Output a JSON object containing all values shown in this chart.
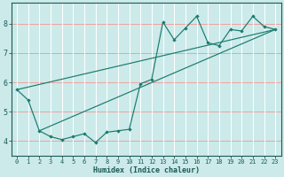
{
  "background_color": "#cceaea",
  "grid_color_h": "#f0a0a0",
  "grid_color_v": "#ffffff",
  "line_color": "#1a7a6e",
  "xlabel": "Humidex (Indice chaleur)",
  "xlim": [
    -0.5,
    23.5
  ],
  "ylim": [
    3.5,
    8.7
  ],
  "yticks": [
    4,
    5,
    6,
    7,
    8
  ],
  "xticks": [
    0,
    1,
    2,
    3,
    4,
    5,
    6,
    7,
    8,
    9,
    10,
    11,
    12,
    13,
    14,
    15,
    16,
    17,
    18,
    19,
    20,
    21,
    22,
    23
  ],
  "series": [
    [
      0,
      5.75
    ],
    [
      1,
      5.4
    ],
    [
      2,
      4.35
    ],
    [
      3,
      4.15
    ],
    [
      4,
      4.05
    ],
    [
      5,
      4.15
    ],
    [
      6,
      4.25
    ],
    [
      7,
      3.95
    ],
    [
      8,
      4.3
    ],
    [
      9,
      4.35
    ],
    [
      10,
      4.4
    ],
    [
      11,
      5.95
    ],
    [
      12,
      6.1
    ],
    [
      13,
      8.05
    ],
    [
      14,
      7.45
    ],
    [
      15,
      7.85
    ],
    [
      16,
      8.25
    ],
    [
      17,
      7.35
    ],
    [
      18,
      7.25
    ],
    [
      19,
      7.8
    ],
    [
      20,
      7.75
    ],
    [
      21,
      8.25
    ],
    [
      22,
      7.9
    ],
    [
      23,
      7.8
    ]
  ],
  "line2_x": [
    0,
    23
  ],
  "line2_y": [
    5.75,
    7.8
  ],
  "line3_x": [
    2,
    23
  ],
  "line3_y": [
    4.35,
    7.8
  ]
}
